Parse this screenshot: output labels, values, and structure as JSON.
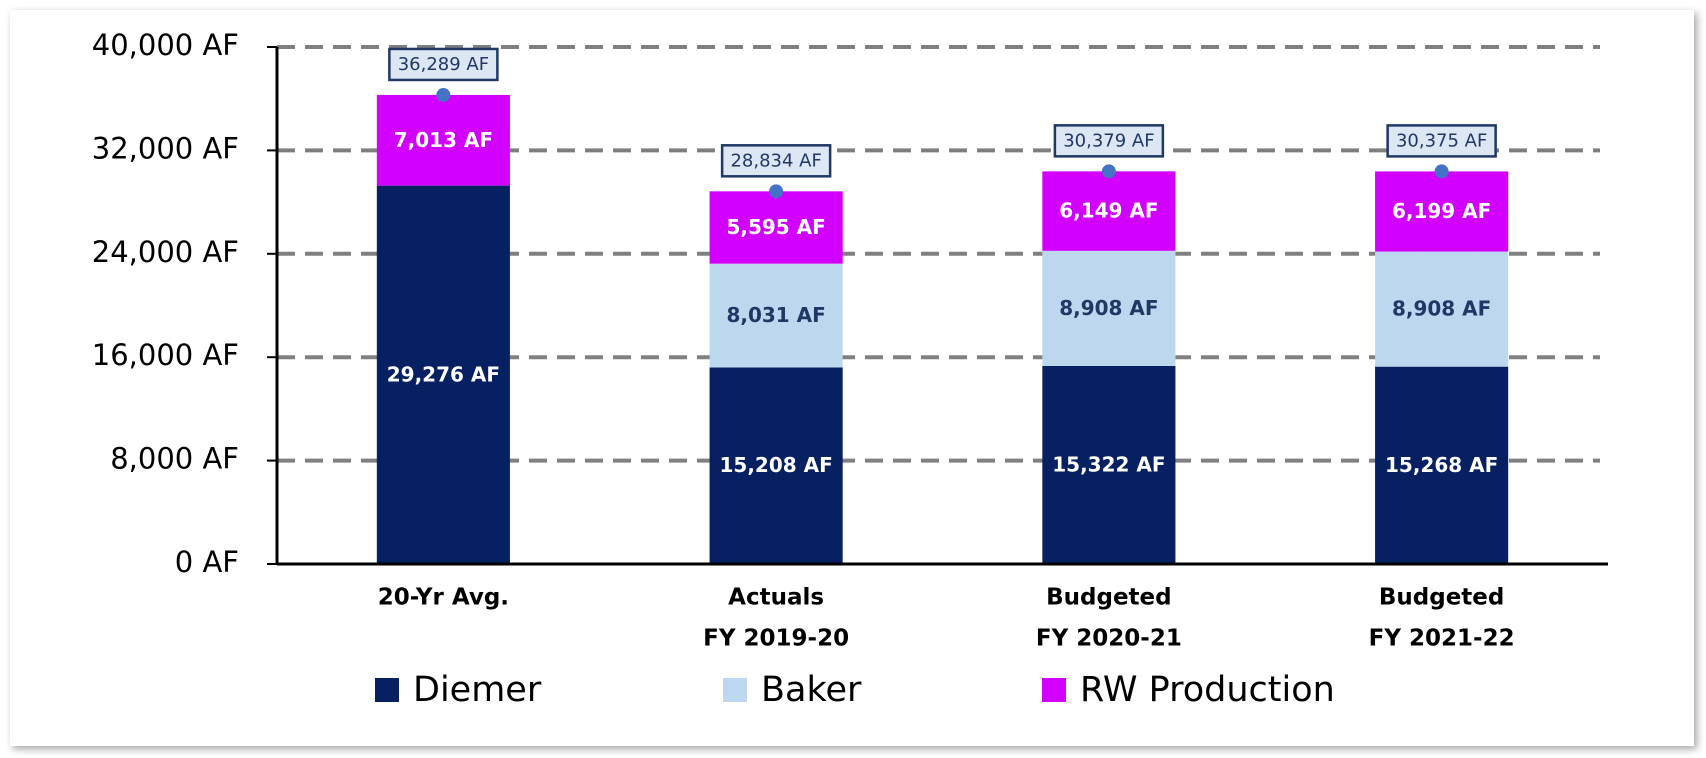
{
  "chart_data": {
    "type": "stacked_bar",
    "categories": [
      [
        "20-Yr Avg."
      ],
      [
        "Actuals",
        "FY 2019-20"
      ],
      [
        "Budgeted",
        "FY 2020-21"
      ],
      [
        "Budgeted",
        "FY 2021-22"
      ]
    ],
    "series": [
      {
        "name": "Diemer",
        "color": "#062061",
        "label_color": "#ffffff",
        "values": [
          29276,
          15208,
          15322,
          15268
        ],
        "value_labels": [
          "29,276 AF",
          "15,208 AF",
          "15,322 AF",
          "15,268 AF"
        ]
      },
      {
        "name": "Baker",
        "color": "#bdd7ee",
        "label_color": "#1f3864",
        "values": [
          null,
          8031,
          8908,
          8908
        ],
        "value_labels": [
          null,
          "8,031 AF",
          "8,908 AF",
          "8,908 AF"
        ]
      },
      {
        "name": "RW Production",
        "color": "#d100ff",
        "label_color": "#ffffff",
        "values": [
          7013,
          5595,
          6149,
          6199
        ],
        "value_labels": [
          "7,013 AF",
          "5,595 AF",
          "6,149 AF",
          "6,199 AF"
        ]
      }
    ],
    "totals": {
      "color": "#4472c4",
      "values": [
        36289,
        28834,
        30379,
        30375
      ],
      "value_labels": [
        "36,289 AF",
        "28,834 AF",
        "30,379 AF",
        "30,375 AF"
      ]
    },
    "ylim": [
      0,
      40000
    ],
    "yticks": [
      {
        "value": 0,
        "label": "0 AF"
      },
      {
        "value": 8000,
        "label": "8,000 AF"
      },
      {
        "value": 16000,
        "label": "16,000 AF"
      },
      {
        "value": 24000,
        "label": "24,000 AF"
      },
      {
        "value": 32000,
        "label": "32,000 AF"
      },
      {
        "value": 40000,
        "label": "40,000 AF"
      }
    ],
    "grid": true,
    "legend": "bottom"
  }
}
